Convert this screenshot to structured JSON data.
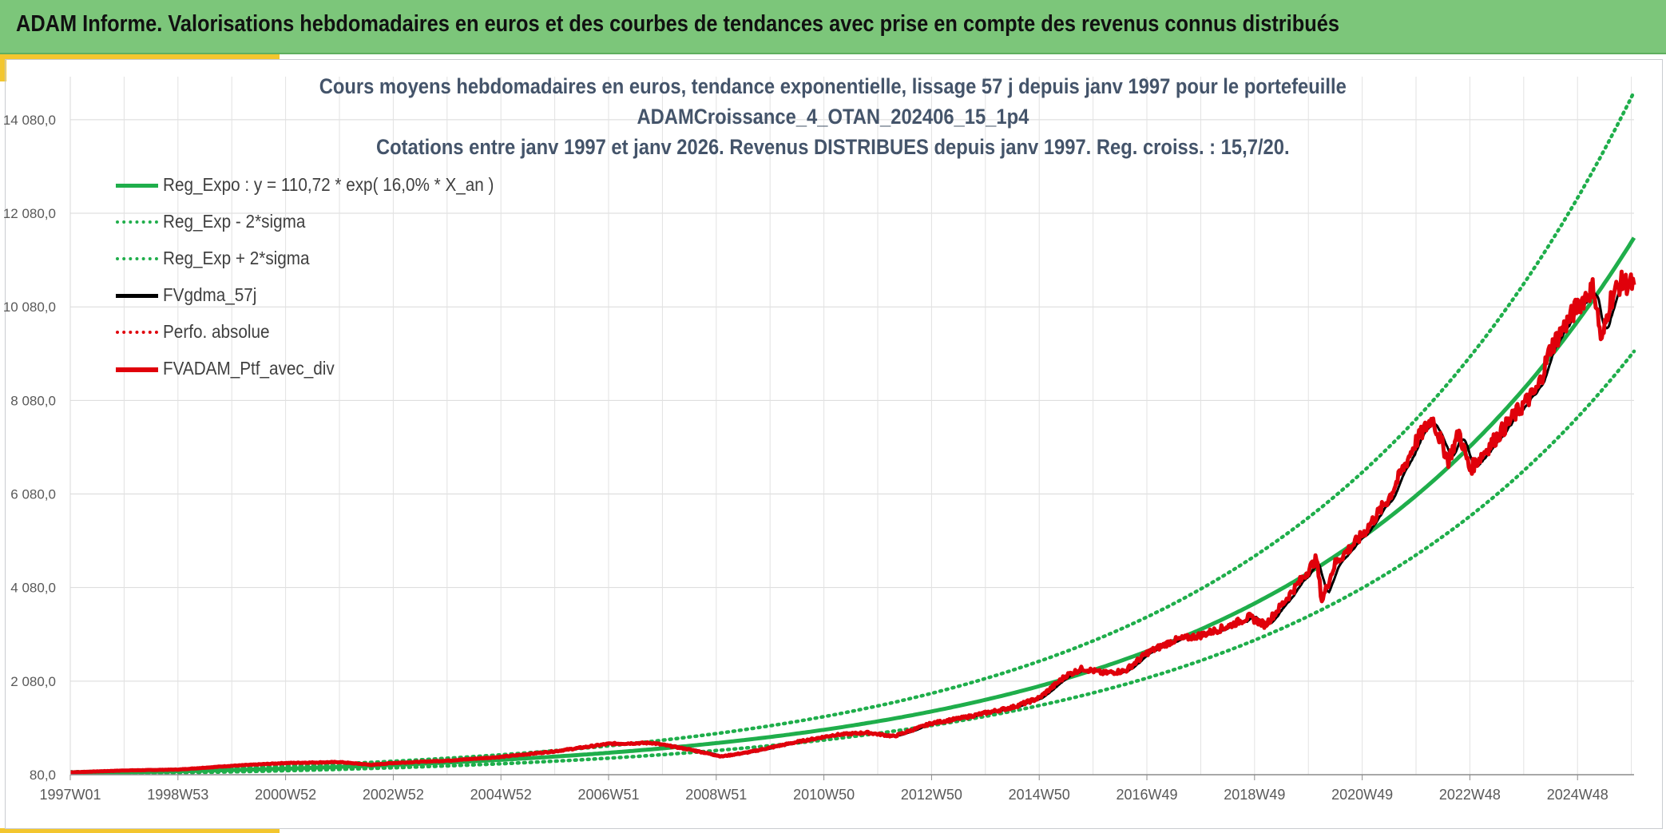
{
  "header": {
    "title": "ADAM Informe. Valorisations hebdomadaires en euros et des courbes de tendances avec prise en compte des revenus connus distribués"
  },
  "colors": {
    "header_bg": "#7cc67a",
    "accent": "#f3c62e",
    "trend": "#1fae4b",
    "gdma": "#000000",
    "ptf": "#e0000b",
    "title": "#44546a"
  },
  "chart_data": {
    "type": "line",
    "title_lines": [
      "Cours moyens hebdomadaires en euros, tendance exponentielle, lissage 57 j depuis janv 1997 pour le portefeuille",
      "ADAMCroissance_4_OTAN_202406_15_1p4",
      "Cotations entre janv 1997 et janv 2026. Revenus DISTRIBUES depuis janv 1997. Reg. croiss. : 15,7/20."
    ],
    "xlabel": "",
    "ylabel": "",
    "x_range_years": [
      1997.0,
      2026.05
    ],
    "ylim": [
      80,
      15000
    ],
    "y_ticks": [
      80,
      2080,
      4080,
      6080,
      8080,
      10080,
      12080,
      14080
    ],
    "y_tick_labels": [
      "80,0",
      "2 080,0",
      "4 080,0",
      "6 080,0",
      "8 080,0",
      "10 080,0",
      "12 080,0",
      "14 080,0"
    ],
    "x_ticks": [
      {
        "label": "1997W01",
        "year": 1997.0
      },
      {
        "label": "1998W53",
        "year": 1999.0
      },
      {
        "label": "2000W52",
        "year": 2001.0
      },
      {
        "label": "2002W52",
        "year": 2003.0
      },
      {
        "label": "2004W52",
        "year": 2005.0
      },
      {
        "label": "2006W51",
        "year": 2007.0
      },
      {
        "label": "2008W51",
        "year": 2009.0
      },
      {
        "label": "2010W50",
        "year": 2011.0
      },
      {
        "label": "2012W50",
        "year": 2013.0
      },
      {
        "label": "2014W50",
        "year": 2015.0
      },
      {
        "label": "2016W49",
        "year": 2017.0
      },
      {
        "label": "2018W49",
        "year": 2019.0
      },
      {
        "label": "2020W49",
        "year": 2021.0
      },
      {
        "label": "2022W48",
        "year": 2023.0
      },
      {
        "label": "2024W48",
        "year": 2025.0
      }
    ],
    "legend": [
      {
        "label": "Reg_Expo : y = 110,72 * exp( 16,0% *  X_an )",
        "style": "solid-thick",
        "color": "#1fae4b"
      },
      {
        "label": "Reg_Exp - 2*sigma",
        "style": "dotted",
        "color": "#1fae4b"
      },
      {
        "label": "Reg_Exp + 2*sigma",
        "style": "dotted",
        "color": "#1fae4b"
      },
      {
        "label": "FVgdma_57j",
        "style": "solid",
        "color": "#000000"
      },
      {
        "label": "Perfo. absolue",
        "style": "dotted",
        "color": "#e0000b"
      },
      {
        "label": "FVADAM_Ptf_avec_div",
        "style": "solid-thick",
        "color": "#e0000b"
      }
    ],
    "series": [
      {
        "name": "Reg_Expo",
        "a": 110.72,
        "b": 0.16,
        "note": "y = 110,72 * exp( 16,0% * X_an )"
      },
      {
        "name": "Reg_Exp - 2*sigma",
        "factor": 0.79
      },
      {
        "name": "Reg_Exp + 2*sigma",
        "factor": 1.27
      },
      {
        "name": "FVADAM_Ptf_avec_div",
        "points": [
          [
            1997.0,
            130
          ],
          [
            1998.0,
            170
          ],
          [
            1999.0,
            190
          ],
          [
            2000.0,
            270
          ],
          [
            2001.0,
            330
          ],
          [
            2002.0,
            350
          ],
          [
            2002.6,
            290
          ],
          [
            2003.0,
            330
          ],
          [
            2004.0,
            380
          ],
          [
            2005.0,
            460
          ],
          [
            2006.0,
            580
          ],
          [
            2007.0,
            740
          ],
          [
            2007.8,
            760
          ],
          [
            2008.5,
            620
          ],
          [
            2009.1,
            470
          ],
          [
            2009.6,
            560
          ],
          [
            2010.5,
            780
          ],
          [
            2011.2,
            930
          ],
          [
            2011.8,
            980
          ],
          [
            2012.3,
            900
          ],
          [
            2013.0,
            1180
          ],
          [
            2013.6,
            1300
          ],
          [
            2014.0,
            1400
          ],
          [
            2014.5,
            1520
          ],
          [
            2015.0,
            1720
          ],
          [
            2015.5,
            2200
          ],
          [
            2015.8,
            2350
          ],
          [
            2016.2,
            2250
          ],
          [
            2016.6,
            2300
          ],
          [
            2017.0,
            2680
          ],
          [
            2017.5,
            2950
          ],
          [
            2018.0,
            3060
          ],
          [
            2018.5,
            3250
          ],
          [
            2018.9,
            3450
          ],
          [
            2019.2,
            3280
          ],
          [
            2019.5,
            3700
          ],
          [
            2020.0,
            4450
          ],
          [
            2020.15,
            4700
          ],
          [
            2020.25,
            3800
          ],
          [
            2020.5,
            4600
          ],
          [
            2021.0,
            5200
          ],
          [
            2021.5,
            6000
          ],
          [
            2022.0,
            7200
          ],
          [
            2022.3,
            7700
          ],
          [
            2022.6,
            6800
          ],
          [
            2022.8,
            7400
          ],
          [
            2023.0,
            6600
          ],
          [
            2023.5,
            7300
          ],
          [
            2024.0,
            8000
          ],
          [
            2024.25,
            8300
          ],
          [
            2024.5,
            9200
          ],
          [
            2025.0,
            10100
          ],
          [
            2025.3,
            10500
          ],
          [
            2025.45,
            9300
          ],
          [
            2025.6,
            10200
          ],
          [
            2025.8,
            10600
          ],
          [
            2026.05,
            10550
          ]
        ]
      },
      {
        "name": "FVgdma_57j",
        "note": "moving average of FVADAM_Ptf_avec_div"
      },
      {
        "name": "Perfo. absolue",
        "note": "dotted red, overlapping the portfolio curve"
      }
    ],
    "grid": true
  }
}
